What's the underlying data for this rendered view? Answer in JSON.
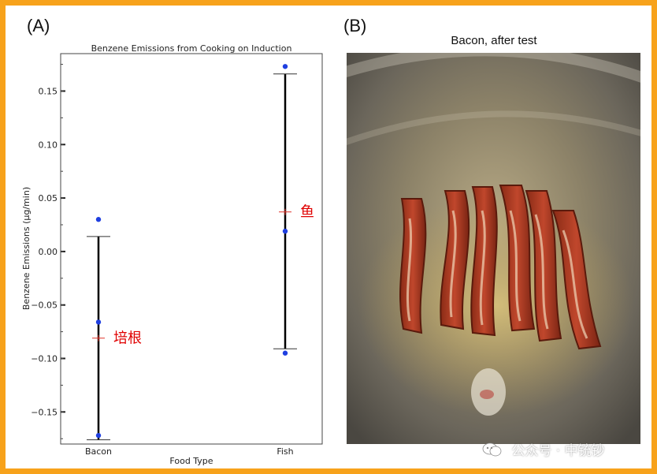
{
  "panel_a_label": "(A)",
  "panel_b_label": "(B)",
  "photo": {
    "title": "Bacon, after test",
    "description_icon": "bacon-photo"
  },
  "watermark": {
    "text": "公众号 · 中铳钞",
    "icon": "wechat-icon"
  },
  "colors": {
    "border": "#f7a21b",
    "points": "#1f3fe0",
    "mean_marker": "#e0342a",
    "annotation": "#e00000"
  },
  "chart_data": {
    "type": "scatter",
    "title": "Benzene Emissions from Cooking on Induction",
    "xlabel": "Food Type",
    "ylabel": "Benzene Emissions (μg/min)",
    "categories": [
      "Bacon",
      "Fish"
    ],
    "ylim": [
      -0.18,
      0.185
    ],
    "yticks": [
      -0.15,
      -0.1,
      -0.05,
      0.0,
      0.05,
      0.1,
      0.15
    ],
    "ytick_labels": [
      "−0.15",
      "−0.10",
      "−0.05",
      "0.00",
      "0.05",
      "0.10",
      "0.15"
    ],
    "grid": false,
    "series": [
      {
        "category": "Bacon",
        "points": [
          0.03,
          -0.066,
          -0.172
        ],
        "mean": -0.081,
        "error_low": -0.176,
        "error_high": 0.014,
        "annotation": "培根"
      },
      {
        "category": "Fish",
        "points": [
          0.173,
          0.019,
          -0.095
        ],
        "mean": 0.037,
        "error_low": -0.091,
        "error_high": 0.166,
        "annotation": "鱼"
      }
    ]
  }
}
